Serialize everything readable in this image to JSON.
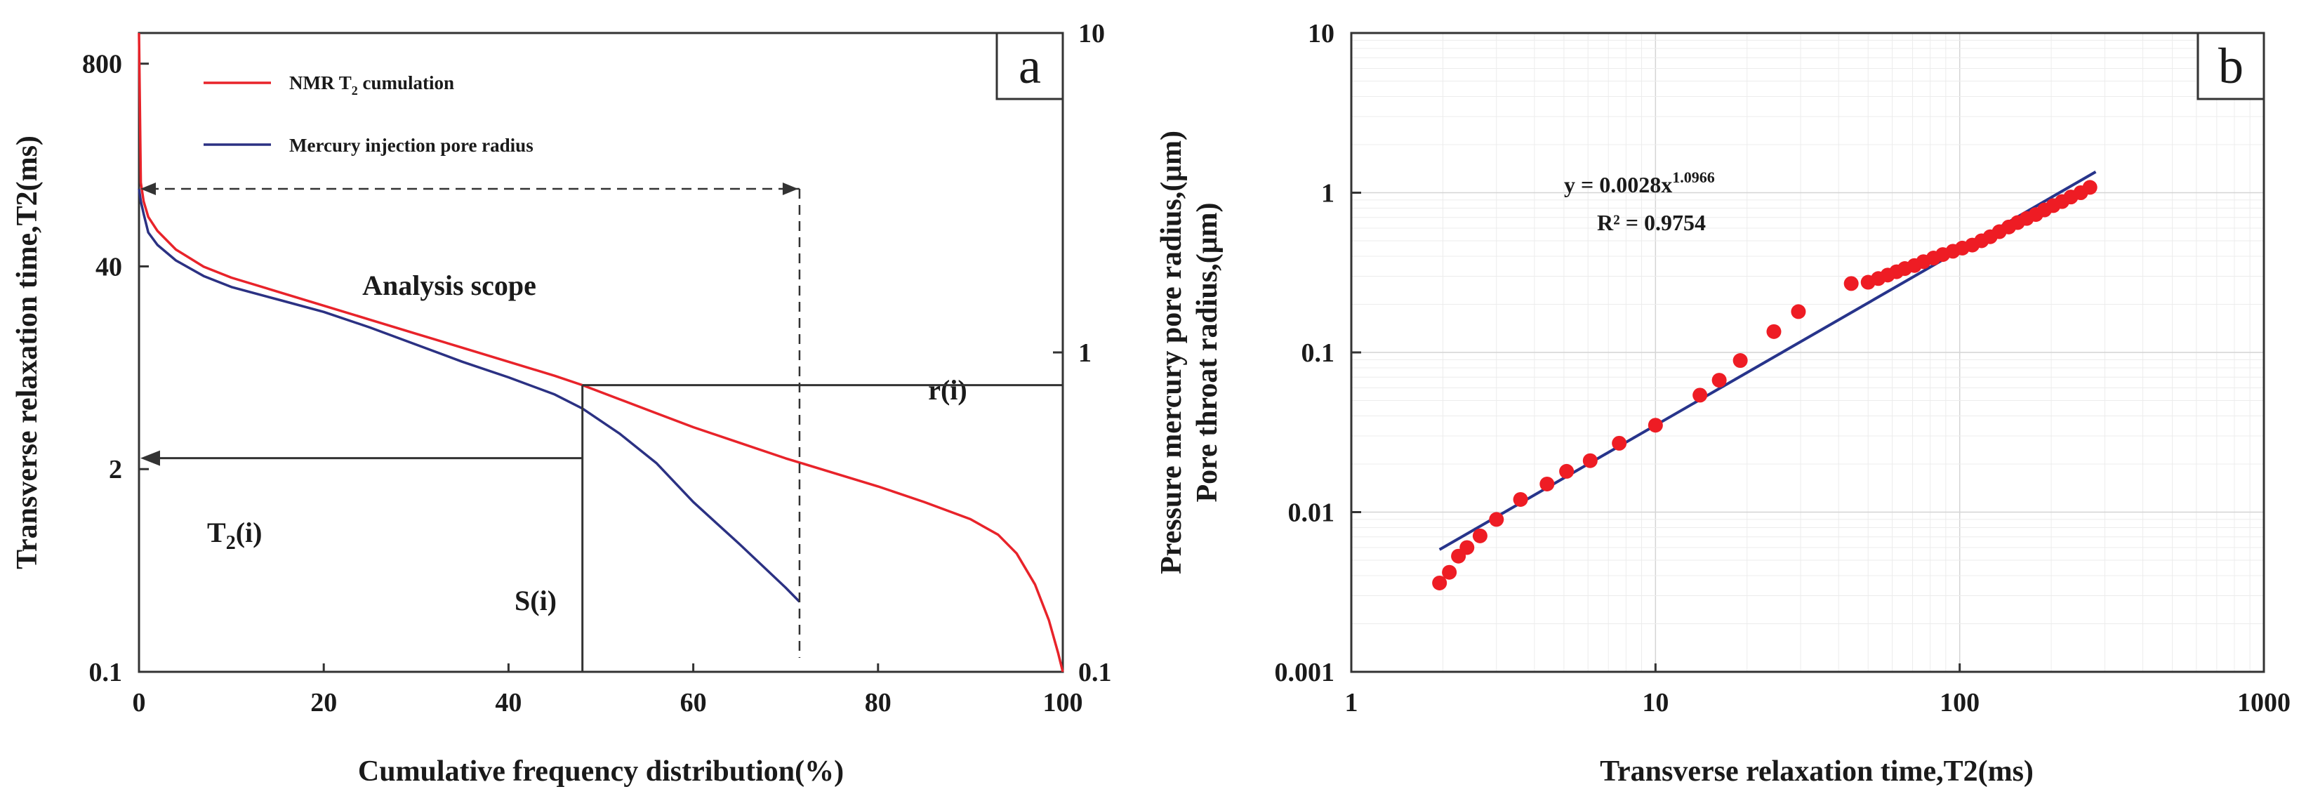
{
  "chart_data": [
    {
      "panel": "a",
      "type": "line",
      "xlabel": "Cumulative frequency distribution(%)",
      "ylabel": "Transverse relaxation time,T2(ms)",
      "y2label": "Pore throat radius,(μm)",
      "xlim": [
        0,
        100
      ],
      "xticks": [
        "0",
        "20",
        "40",
        "60",
        "80",
        "100"
      ],
      "yticks_left": [
        "0.1",
        "2",
        "40",
        "800"
      ],
      "yticks_right": [
        "0.1",
        "1",
        "10"
      ],
      "legend": [
        {
          "name": "NMR T2 cumulation",
          "label": "NMR T",
          "sub": "2",
          "suffix": "  cumulation",
          "color": "#e8232a"
        },
        {
          "name": "Mercury injection pore radius",
          "label": "Mercury injection pore radius",
          "color": "#2b3183"
        }
      ],
      "series": [
        {
          "name": "NMR T2 cumulation",
          "color": "#e8232a",
          "x": [
            0,
            0.2,
            0.5,
            1,
            2,
            4,
            7,
            10,
            15,
            20,
            25,
            30,
            35,
            40,
            45,
            48,
            52,
            56,
            60,
            65,
            70,
            75,
            80,
            85,
            90,
            93,
            95,
            97,
            98.5,
            99.5,
            100
          ],
          "y_log_left": [
            4.1,
            3.14,
            3.02,
            2.92,
            2.83,
            2.71,
            2.6,
            2.53,
            2.44,
            2.35,
            2.26,
            2.17,
            2.08,
            1.99,
            1.9,
            1.84,
            1.75,
            1.66,
            1.57,
            1.47,
            1.37,
            1.28,
            1.19,
            1.09,
            0.98,
            0.88,
            0.76,
            0.56,
            0.33,
            0.12,
            0
          ]
        },
        {
          "name": "Mercury injection pore radius",
          "color": "#2b3183",
          "x": [
            0,
            0.2,
            0.5,
            1,
            2,
            4,
            7,
            10,
            15,
            20,
            25,
            30,
            35,
            40,
            45,
            48,
            52,
            56,
            60,
            65,
            70,
            71.5
          ],
          "y_log_left": [
            3.1,
            3.02,
            2.94,
            2.82,
            2.74,
            2.64,
            2.54,
            2.47,
            2.39,
            2.31,
            2.21,
            2.1,
            1.99,
            1.89,
            1.78,
            1.69,
            1.53,
            1.34,
            1.09,
            0.82,
            0.54,
            0.45
          ]
        }
      ],
      "annotations": {
        "analysis_scope": "Analysis scope",
        "ri": "r(i)",
        "t2i_main": "T",
        "t2i_sub": "2",
        "t2i_suffix": "(i)",
        "si": "S(i)",
        "analysis_scope_x": [
          0,
          71.5
        ],
        "analysis_scope_y_log": 3.1,
        "si_x": 48,
        "si_y_log": 1.84
      }
    },
    {
      "panel": "b",
      "type": "scatter",
      "xlabel": "Transverse relaxation time,T2(ms)",
      "ylabel": "Pressure mercury pore radius,(μm)",
      "xscale": "log",
      "yscale": "log",
      "xlim": [
        1,
        1000
      ],
      "ylim": [
        0.001,
        10
      ],
      "xticks": [
        "1",
        "10",
        "100",
        "1000"
      ],
      "yticks": [
        "0.001",
        "0.01",
        "0.1",
        "1",
        "10"
      ],
      "points_color": "#ee1c24",
      "fit_color": "#27348b",
      "equation_line1": "y = 0.0028x",
      "equation_exponent": "1.0966",
      "equation_line2": "R² = 0.9754",
      "fit": {
        "a": 0.0028,
        "b": 1.0966,
        "x_range": [
          1.95,
          280
        ]
      },
      "points": [
        [
          1.95,
          0.0036
        ],
        [
          2.1,
          0.0042
        ],
        [
          2.25,
          0.0053
        ],
        [
          2.4,
          0.006
        ],
        [
          2.65,
          0.0071
        ],
        [
          3.0,
          0.009
        ],
        [
          3.6,
          0.012
        ],
        [
          4.4,
          0.015
        ],
        [
          5.1,
          0.018
        ],
        [
          6.1,
          0.021
        ],
        [
          7.6,
          0.027
        ],
        [
          10.0,
          0.035
        ],
        [
          14.0,
          0.054
        ],
        [
          16.2,
          0.067
        ],
        [
          19.0,
          0.089
        ],
        [
          24.5,
          0.135
        ],
        [
          29.5,
          0.18
        ],
        [
          44,
          0.27
        ],
        [
          50,
          0.275
        ],
        [
          54,
          0.29
        ],
        [
          58,
          0.305
        ],
        [
          62,
          0.32
        ],
        [
          66,
          0.335
        ],
        [
          71,
          0.35
        ],
        [
          76,
          0.37
        ],
        [
          82,
          0.39
        ],
        [
          88,
          0.41
        ],
        [
          95,
          0.43
        ],
        [
          102,
          0.45
        ],
        [
          110,
          0.47
        ],
        [
          118,
          0.5
        ],
        [
          126,
          0.53
        ],
        [
          135,
          0.57
        ],
        [
          145,
          0.61
        ],
        [
          155,
          0.65
        ],
        [
          166,
          0.69
        ],
        [
          178,
          0.73
        ],
        [
          190,
          0.78
        ],
        [
          203,
          0.83
        ],
        [
          217,
          0.88
        ],
        [
          232,
          0.94
        ],
        [
          250,
          1.0
        ],
        [
          268,
          1.08
        ]
      ]
    }
  ]
}
